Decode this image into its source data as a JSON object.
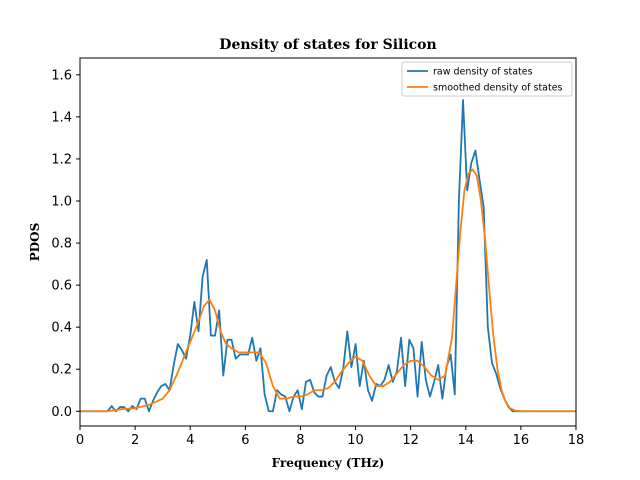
{
  "chart_data": {
    "type": "line",
    "title": "Density of states for Silicon",
    "xlabel": "Frequency (THz)",
    "ylabel": "PDOS",
    "xlim": [
      0,
      18
    ],
    "ylim": [
      -0.07,
      1.68
    ],
    "xticks": [
      "0",
      "2",
      "4",
      "6",
      "8",
      "10",
      "12",
      "14",
      "16",
      "18"
    ],
    "yticks": [
      "0.0",
      "0.2",
      "0.4",
      "0.6",
      "0.8",
      "1.0",
      "1.2",
      "1.4",
      "1.6"
    ],
    "grid": false,
    "legend_position": "top-right",
    "colors": {
      "raw": "#1f77b4",
      "smoothed": "#ff7f0e"
    },
    "series": [
      {
        "name": "raw density of states",
        "x": [
          0,
          0.2,
          0.4,
          0.6,
          0.8,
          1.0,
          1.15,
          1.3,
          1.45,
          1.6,
          1.75,
          1.9,
          2.05,
          2.2,
          2.35,
          2.5,
          2.65,
          2.8,
          2.95,
          3.1,
          3.25,
          3.4,
          3.55,
          3.7,
          3.85,
          4.0,
          4.15,
          4.3,
          4.45,
          4.6,
          4.75,
          4.9,
          5.05,
          5.2,
          5.35,
          5.5,
          5.65,
          5.8,
          5.95,
          6.1,
          6.25,
          6.4,
          6.55,
          6.7,
          6.85,
          7.0,
          7.15,
          7.3,
          7.45,
          7.6,
          7.75,
          7.9,
          8.05,
          8.2,
          8.35,
          8.5,
          8.65,
          8.8,
          8.95,
          9.1,
          9.25,
          9.4,
          9.55,
          9.7,
          9.85,
          10.0,
          10.15,
          10.3,
          10.45,
          10.6,
          10.75,
          10.9,
          11.05,
          11.2,
          11.35,
          11.5,
          11.65,
          11.8,
          11.95,
          12.1,
          12.25,
          12.4,
          12.55,
          12.7,
          12.85,
          13.0,
          13.15,
          13.3,
          13.45,
          13.6,
          13.75,
          13.9,
          14.05,
          14.2,
          14.35,
          14.5,
          14.65,
          14.8,
          14.95,
          15.1,
          15.25,
          15.4,
          15.55,
          15.7,
          15.85,
          16.0,
          16.5,
          17.0,
          17.5,
          18.0
        ],
        "y": [
          0.0,
          0.0,
          0.0,
          0.0,
          0.0,
          0.0,
          0.025,
          0.0,
          0.02,
          0.02,
          0.0,
          0.025,
          0.01,
          0.06,
          0.06,
          0.0,
          0.05,
          0.09,
          0.12,
          0.13,
          0.1,
          0.22,
          0.32,
          0.29,
          0.25,
          0.36,
          0.52,
          0.38,
          0.64,
          0.72,
          0.36,
          0.36,
          0.48,
          0.17,
          0.34,
          0.34,
          0.25,
          0.27,
          0.27,
          0.27,
          0.35,
          0.24,
          0.3,
          0.08,
          0.0,
          0.0,
          0.1,
          0.08,
          0.07,
          0.0,
          0.07,
          0.1,
          0.01,
          0.14,
          0.15,
          0.09,
          0.07,
          0.07,
          0.17,
          0.21,
          0.14,
          0.11,
          0.2,
          0.38,
          0.21,
          0.32,
          0.12,
          0.24,
          0.1,
          0.05,
          0.13,
          0.12,
          0.15,
          0.22,
          0.14,
          0.19,
          0.35,
          0.12,
          0.34,
          0.3,
          0.07,
          0.33,
          0.15,
          0.07,
          0.14,
          0.22,
          0.06,
          0.21,
          0.27,
          0.08,
          1.0,
          1.48,
          1.05,
          1.18,
          1.24,
          1.1,
          0.97,
          0.4,
          0.23,
          0.18,
          0.11,
          0.06,
          0.02,
          0.0,
          0.0,
          0.0,
          0.0,
          0.0,
          0.0,
          0.0
        ]
      },
      {
        "name": "smoothed density of states",
        "x": [
          0,
          0.5,
          1.0,
          1.5,
          2.0,
          2.5,
          3.0,
          3.25,
          3.5,
          3.75,
          4.0,
          4.25,
          4.5,
          4.7,
          4.9,
          5.1,
          5.3,
          5.5,
          5.75,
          6.0,
          6.25,
          6.5,
          6.75,
          7.0,
          7.25,
          7.5,
          7.75,
          8.0,
          8.25,
          8.5,
          8.75,
          9.0,
          9.25,
          9.5,
          9.75,
          10.0,
          10.25,
          10.5,
          10.75,
          11.0,
          11.25,
          11.5,
          11.75,
          12.0,
          12.25,
          12.5,
          12.75,
          13.0,
          13.25,
          13.5,
          13.65,
          13.8,
          13.95,
          14.1,
          14.25,
          14.4,
          14.55,
          14.7,
          14.85,
          15.0,
          15.15,
          15.3,
          15.45,
          15.6,
          15.8,
          16.0,
          16.5,
          17.0,
          18.0
        ],
        "y": [
          0.0,
          0.0,
          0.0,
          0.01,
          0.015,
          0.03,
          0.06,
          0.1,
          0.17,
          0.25,
          0.33,
          0.41,
          0.5,
          0.53,
          0.48,
          0.38,
          0.32,
          0.3,
          0.28,
          0.28,
          0.28,
          0.28,
          0.23,
          0.12,
          0.06,
          0.06,
          0.07,
          0.07,
          0.08,
          0.1,
          0.1,
          0.11,
          0.14,
          0.19,
          0.23,
          0.26,
          0.24,
          0.17,
          0.12,
          0.12,
          0.14,
          0.18,
          0.22,
          0.24,
          0.24,
          0.21,
          0.17,
          0.15,
          0.17,
          0.35,
          0.6,
          0.85,
          1.05,
          1.13,
          1.15,
          1.12,
          1.0,
          0.82,
          0.58,
          0.36,
          0.2,
          0.1,
          0.045,
          0.015,
          0.003,
          0.0,
          0.0,
          0.0,
          0.0
        ]
      }
    ]
  }
}
